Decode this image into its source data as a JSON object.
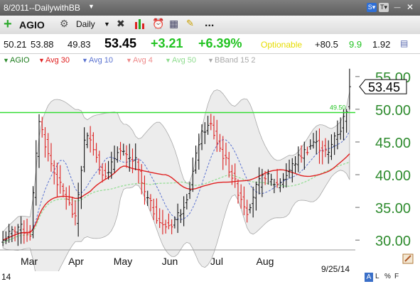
{
  "window": {
    "title": "8/2011--DailywithBB"
  },
  "toolbar": {
    "symbol": "AGIO",
    "period": "Daily",
    "more": "..."
  },
  "quote": {
    "open": "50.21",
    "high": "53.88",
    "low": "49.83",
    "last": "53.45",
    "change": "+3.21",
    "change_pct": "+6.39%",
    "optionable": "Optionable",
    "v1": "+80.5",
    "v2": "9.9",
    "v3": "1.92"
  },
  "legend": {
    "symbol": "AGIO",
    "ma30": "Avg 30",
    "ma10": "Avg 10",
    "ma4": "Avg 4",
    "ma50": "Avg 50",
    "bband": "BBand 15 2"
  },
  "footer": {
    "year_fragment": "14",
    "date": "9/25/14",
    "flags": [
      "A",
      "L",
      "%",
      "F"
    ]
  },
  "colors": {
    "up": "#111111",
    "down": "#dd1f1f",
    "ma30": "#e02020",
    "ma10": "#5a72d0",
    "ma4": "#ee8a8a",
    "ma50": "#8fdc8f",
    "bband": "#a8a8a8",
    "hline": "#33dd33",
    "axis_text": "#2e8b2e",
    "pos": "#22c322",
    "optionable": "#e6dc00"
  },
  "icons": [
    "plus-icon",
    "gear-icon",
    "bar-chart-icon",
    "alarm-clock-icon",
    "grid-icon",
    "note-icon",
    "dropdown-arrow-icon",
    "pencil-icon",
    "sort-icon"
  ],
  "chart_data": {
    "type": "candlestick",
    "title": "AGIO",
    "xlabel": "",
    "ylabel": "",
    "ylim": [
      28.5,
      56.5
    ],
    "y_ticks": [
      30,
      35,
      40,
      45,
      50,
      55
    ],
    "x_ticks": [
      "Mar",
      "Apr",
      "May",
      "Jun",
      "Jul",
      "Aug"
    ],
    "grid": false,
    "last_price_label": "53.45",
    "horizontal_line": {
      "value": 49.5,
      "label": "49.50"
    },
    "close_anchors": [
      [
        0,
        30.0
      ],
      [
        5,
        32.0
      ],
      [
        9,
        31.0
      ],
      [
        12,
        48.5
      ],
      [
        15,
        43.0
      ],
      [
        18,
        39.0
      ],
      [
        21,
        36.5
      ],
      [
        24,
        33.0
      ],
      [
        27,
        45.0
      ],
      [
        29,
        46.0
      ],
      [
        32,
        41.0
      ],
      [
        35,
        40.0
      ],
      [
        38,
        44.0
      ],
      [
        41,
        42.5
      ],
      [
        44,
        42.0
      ],
      [
        47,
        37.0
      ],
      [
        50,
        34.5
      ],
      [
        53,
        32.0
      ],
      [
        56,
        32.5
      ],
      [
        59,
        34.5
      ],
      [
        62,
        38.0
      ],
      [
        65,
        45.0
      ],
      [
        67,
        47.0
      ],
      [
        69,
        47.5
      ],
      [
        71,
        45.0
      ],
      [
        73,
        43.0
      ],
      [
        75,
        41.0
      ],
      [
        78,
        37.5
      ],
      [
        81,
        34.5
      ],
      [
        84,
        38.0
      ],
      [
        87,
        40.0
      ],
      [
        89,
        39.0
      ],
      [
        91,
        38.5
      ],
      [
        94,
        40.0
      ],
      [
        97,
        42.0
      ],
      [
        100,
        43.5
      ],
      [
        103,
        45.0
      ],
      [
        106,
        44.0
      ],
      [
        108,
        43.0
      ],
      [
        110,
        46.0
      ],
      [
        112,
        47.0
      ],
      [
        114,
        50.2
      ],
      [
        115,
        53.45
      ]
    ]
  }
}
